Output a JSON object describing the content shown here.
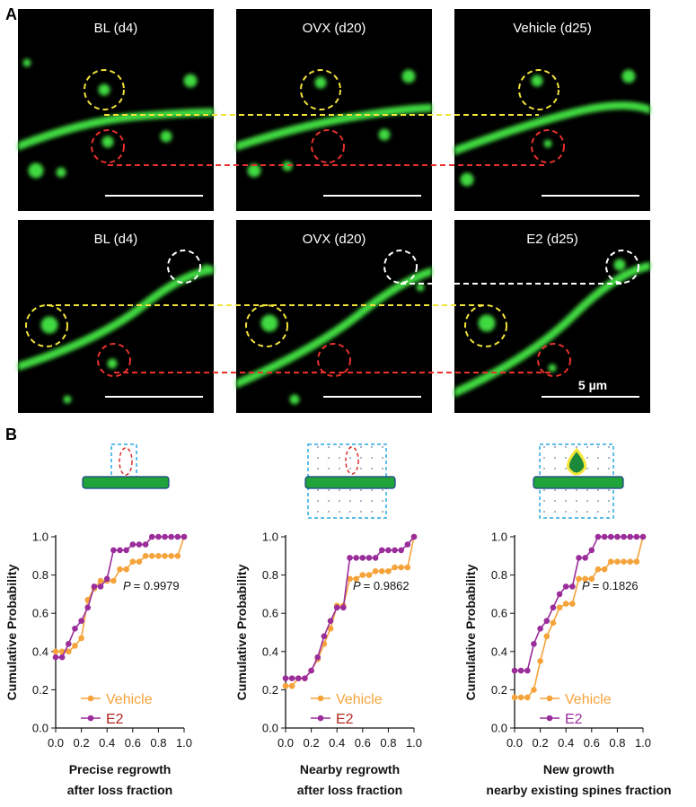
{
  "panel_a": {
    "label": "A",
    "row1_titles": [
      "BL (d4)",
      "OVX (d20)",
      "Vehicle (d25)"
    ],
    "row2_titles": [
      "BL (d4)",
      "OVX (d20)",
      "E2 (d25)"
    ],
    "scale_label": "5 µm"
  },
  "panel_b": {
    "label": "B"
  },
  "chart_data": [
    {
      "type": "line",
      "ylabel": "Cumulative Probability",
      "xlabel": [
        "Precise regrowth",
        "after loss fraction"
      ],
      "annotation_label": "P",
      "annotation": "= 0.9979",
      "x": [
        0,
        0.05,
        0.1,
        0.15,
        0.2,
        0.25,
        0.3,
        0.35,
        0.4,
        0.45,
        0.5,
        0.55,
        0.6,
        0.65,
        0.7,
        0.75,
        0.8,
        0.85,
        0.9,
        0.95,
        1.0
      ],
      "series": [
        {
          "name": "Vehicle",
          "color": "#f5a33a",
          "label_color": "#f5a33a",
          "values": [
            0.4,
            0.4,
            0.4,
            0.43,
            0.47,
            0.67,
            0.73,
            0.77,
            0.77,
            0.77,
            0.83,
            0.83,
            0.87,
            0.87,
            0.9,
            0.9,
            0.9,
            0.9,
            0.9,
            0.9,
            1.0
          ]
        },
        {
          "name": "E2",
          "color": "#9b2d9b",
          "label_color": "#b3261e",
          "values": [
            0.37,
            0.37,
            0.44,
            0.52,
            0.56,
            0.63,
            0.74,
            0.74,
            0.78,
            0.93,
            0.93,
            0.93,
            0.96,
            0.96,
            0.96,
            1.0,
            1.0,
            1.0,
            1.0,
            1.0,
            1.0
          ]
        }
      ],
      "xlim": [
        0,
        1
      ],
      "ylim": [
        0,
        1
      ],
      "xticks": [
        {
          "value": 0,
          "label": "0.0"
        },
        0.2,
        0.4,
        0.6,
        0.8,
        {
          "value": 1,
          "label": "1.0"
        }
      ],
      "yticks": [
        {
          "value": 0,
          "label": "0.0"
        },
        0.2,
        0.4,
        0.6,
        0.8,
        {
          "value": 1,
          "label": "1.0"
        }
      ],
      "legend": "lower right"
    },
    {
      "type": "line",
      "ylabel": "Cumulative Probability",
      "xlabel": [
        "Nearby regrowth",
        "after loss fraction"
      ],
      "annotation_label": "P",
      "annotation": "= 0.9862",
      "x": [
        0,
        0.05,
        0.1,
        0.15,
        0.2,
        0.25,
        0.3,
        0.35,
        0.4,
        0.45,
        0.5,
        0.55,
        0.6,
        0.65,
        0.7,
        0.75,
        0.8,
        0.85,
        0.9,
        0.95,
        1.0
      ],
      "series": [
        {
          "name": "Vehicle",
          "color": "#f5a33a",
          "label_color": "#f5a33a",
          "values": [
            0.22,
            0.22,
            0.26,
            0.26,
            0.3,
            0.36,
            0.44,
            0.52,
            0.64,
            0.64,
            0.78,
            0.78,
            0.8,
            0.8,
            0.82,
            0.82,
            0.82,
            0.84,
            0.84,
            0.84,
            1.0
          ]
        },
        {
          "name": "E2",
          "color": "#9b2d9b",
          "label_color": "#b3261e",
          "values": [
            0.26,
            0.26,
            0.26,
            0.26,
            0.3,
            0.37,
            0.48,
            0.56,
            0.63,
            0.63,
            0.89,
            0.89,
            0.89,
            0.89,
            0.89,
            0.93,
            0.93,
            0.93,
            0.93,
            0.96,
            1.0
          ]
        }
      ],
      "xlim": [
        0,
        1
      ],
      "ylim": [
        0,
        1
      ],
      "xticks": [
        {
          "value": 0,
          "label": "0.0"
        },
        0.2,
        0.4,
        0.6,
        0.8,
        {
          "value": 1,
          "label": "1.0"
        }
      ],
      "yticks": [
        {
          "value": 0,
          "label": "0.0"
        },
        0.2,
        0.4,
        0.6,
        0.8,
        {
          "value": 1,
          "label": "1.0"
        }
      ],
      "legend": "lower right"
    },
    {
      "type": "line",
      "ylabel": "Cumulative Probability",
      "xlabel": [
        "New growth",
        "nearby existing spines fraction"
      ],
      "annotation_label": "P",
      "annotation": "= 0.1826",
      "x": [
        0,
        0.05,
        0.1,
        0.15,
        0.2,
        0.25,
        0.3,
        0.35,
        0.4,
        0.45,
        0.5,
        0.55,
        0.6,
        0.65,
        0.7,
        0.75,
        0.8,
        0.85,
        0.9,
        0.95,
        1.0
      ],
      "series": [
        {
          "name": "Vehicle",
          "color": "#f5a33a",
          "label_color": "#f5a33a",
          "values": [
            0.16,
            0.16,
            0.16,
            0.2,
            0.35,
            0.48,
            0.55,
            0.63,
            0.65,
            0.65,
            0.78,
            0.78,
            0.78,
            0.83,
            0.83,
            0.87,
            0.87,
            0.87,
            0.87,
            0.87,
            1.0
          ]
        },
        {
          "name": "E2",
          "color": "#9b2d9b",
          "label_color": "#9b2d9b",
          "values": [
            0.3,
            0.3,
            0.3,
            0.44,
            0.52,
            0.56,
            0.63,
            0.7,
            0.74,
            0.74,
            0.89,
            0.89,
            0.93,
            1.0,
            1.0,
            1.0,
            1.0,
            1.0,
            1.0,
            1.0,
            1.0
          ]
        }
      ],
      "xlim": [
        0,
        1
      ],
      "ylim": [
        0,
        1
      ],
      "xticks": [
        {
          "value": 0,
          "label": "0.0"
        },
        0.2,
        0.4,
        0.6,
        0.8,
        {
          "value": 1,
          "label": "1.0"
        }
      ],
      "yticks": [
        {
          "value": 0,
          "label": "0.0"
        },
        0.2,
        0.4,
        0.6,
        0.8,
        {
          "value": 1,
          "label": "1.0"
        }
      ],
      "legend": "lower right"
    }
  ]
}
